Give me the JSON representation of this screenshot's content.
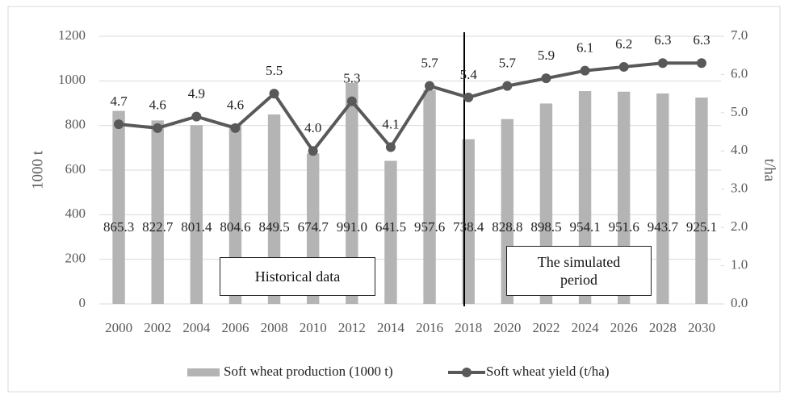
{
  "chart_data": {
    "type": "bar_line",
    "categories": [
      "2000",
      "2002",
      "2004",
      "2006",
      "2008",
      "2010",
      "2012",
      "2014",
      "2016",
      "2018",
      "2020",
      "2022",
      "2024",
      "2026",
      "2028",
      "2030"
    ],
    "series": [
      {
        "name": "Soft wheat production (1000 t)",
        "type": "bar",
        "color": "#b4b4b4",
        "values": [
          865.3,
          822.7,
          801.4,
          804.6,
          849.5,
          674.7,
          991.0,
          641.5,
          957.6,
          738.4,
          828.8,
          898.5,
          954.1,
          951.6,
          943.7,
          925.1
        ],
        "value_labels": [
          "865.3",
          "822.7",
          "801.4",
          "804.6",
          "849.5",
          "674.7",
          "991.0",
          "641.5",
          "957.6",
          "738.4",
          "828.8",
          "898.5",
          "954.1",
          "951.6",
          "943.7",
          "925.1"
        ]
      },
      {
        "name": "Soft wheat yield (t/ha)",
        "type": "line",
        "axis": "y2",
        "color": "#595959",
        "values": [
          4.7,
          4.6,
          4.9,
          4.6,
          5.5,
          4.0,
          5.3,
          4.1,
          5.7,
          5.4,
          5.7,
          5.9,
          6.1,
          6.2,
          6.3,
          6.3
        ],
        "value_labels": [
          "4.7",
          "4.6",
          "4.9",
          "4.6",
          "5.5",
          "4.0",
          "5.3",
          "4.1",
          "5.7",
          "5.4",
          "5.7",
          "5.9",
          "6.1",
          "6.2",
          "6.3",
          "6.3"
        ]
      }
    ],
    "ylabel": "1000 t",
    "y2label": "t/ha",
    "ylim": [
      0,
      1200
    ],
    "yticks": [
      0,
      200,
      400,
      600,
      800,
      1000,
      1200
    ],
    "y2lim": [
      0,
      7
    ],
    "y2ticks": [
      {
        "value": 0,
        "label": "0.0"
      },
      {
        "value": 1,
        "label": "1.0"
      },
      {
        "value": 2,
        "label": "2.0"
      },
      {
        "value": 3,
        "label": "3.0"
      },
      {
        "value": 4,
        "label": "4.0"
      },
      {
        "value": 5,
        "label": "5.0"
      },
      {
        "value": 6,
        "label": "6.0"
      },
      {
        "value": 7,
        "label": "7.0"
      }
    ],
    "grid": true,
    "legend": "bottom",
    "annotations": [
      "Historical data",
      "The simulated period"
    ]
  }
}
